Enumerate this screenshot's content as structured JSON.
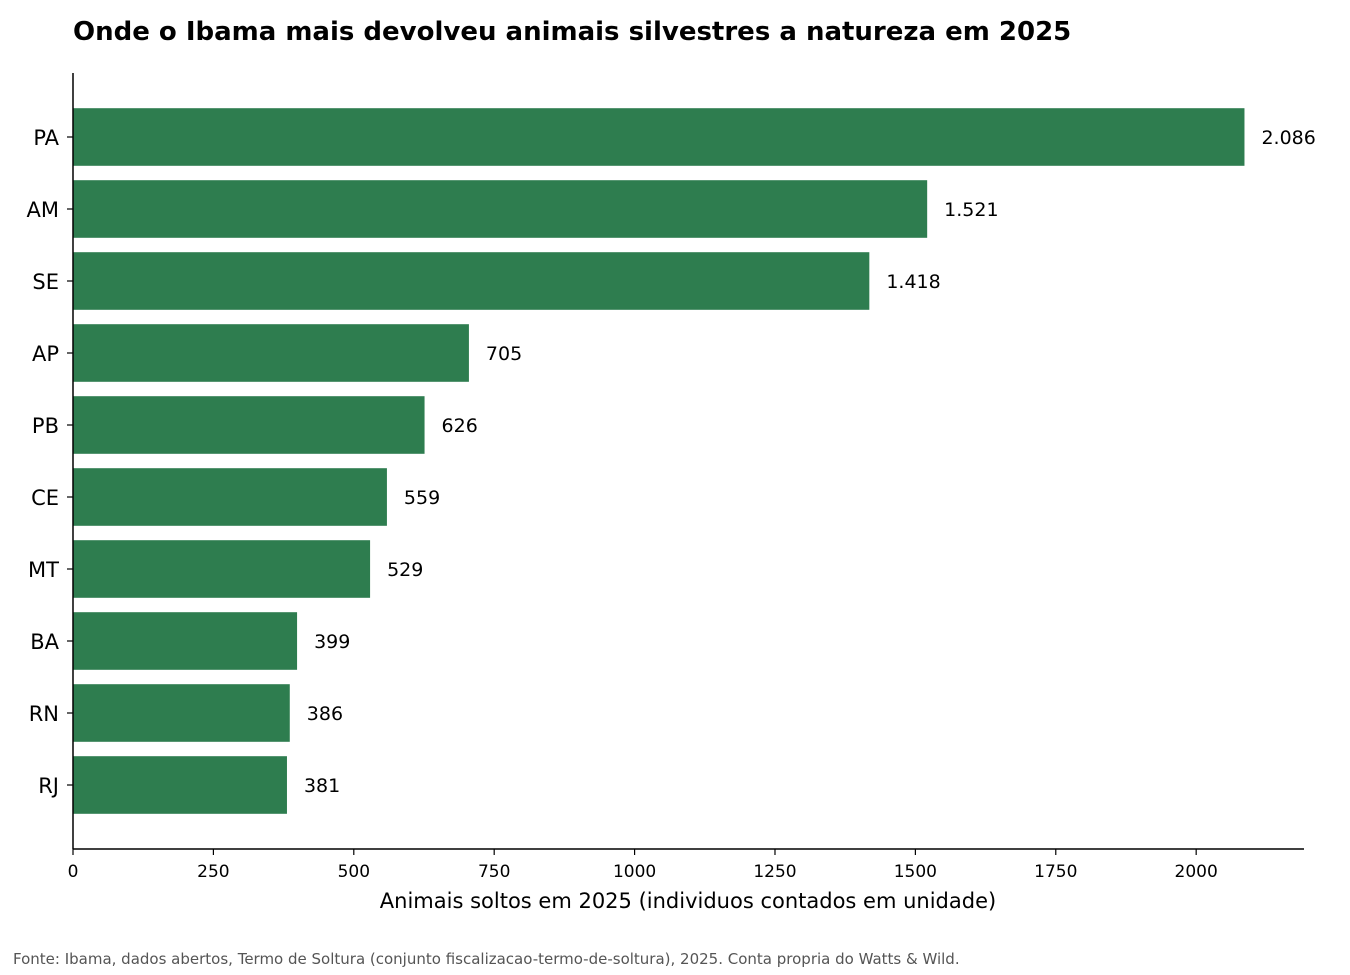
{
  "chart_data": {
    "type": "bar",
    "orientation": "horizontal",
    "title": "Onde o Ibama mais devolveu animais silvestres a natureza em 2025",
    "xlabel": "Animais soltos em 2025 (individuos contados em unidade)",
    "ylabel": "",
    "categories": [
      "PA",
      "AM",
      "SE",
      "AP",
      "PB",
      "CE",
      "MT",
      "BA",
      "RN",
      "RJ"
    ],
    "values": [
      2086,
      1521,
      1418,
      705,
      626,
      559,
      529,
      399,
      386,
      381
    ],
    "value_labels": [
      "2.086",
      "1.521",
      "1.418",
      "705",
      "626",
      "559",
      "529",
      "399",
      "386",
      "381"
    ],
    "xlim": [
      0,
      2192
    ],
    "xticks": [
      0,
      250,
      500,
      750,
      1000,
      1250,
      1500,
      1750,
      2000
    ],
    "grid": false,
    "bar_color": "#2e7d4f"
  },
  "source": "Fonte: Ibama, dados abertos, Termo de Soltura (conjunto fiscalizacao-termo-de-soltura), 2025. Conta propria do Watts & Wild."
}
